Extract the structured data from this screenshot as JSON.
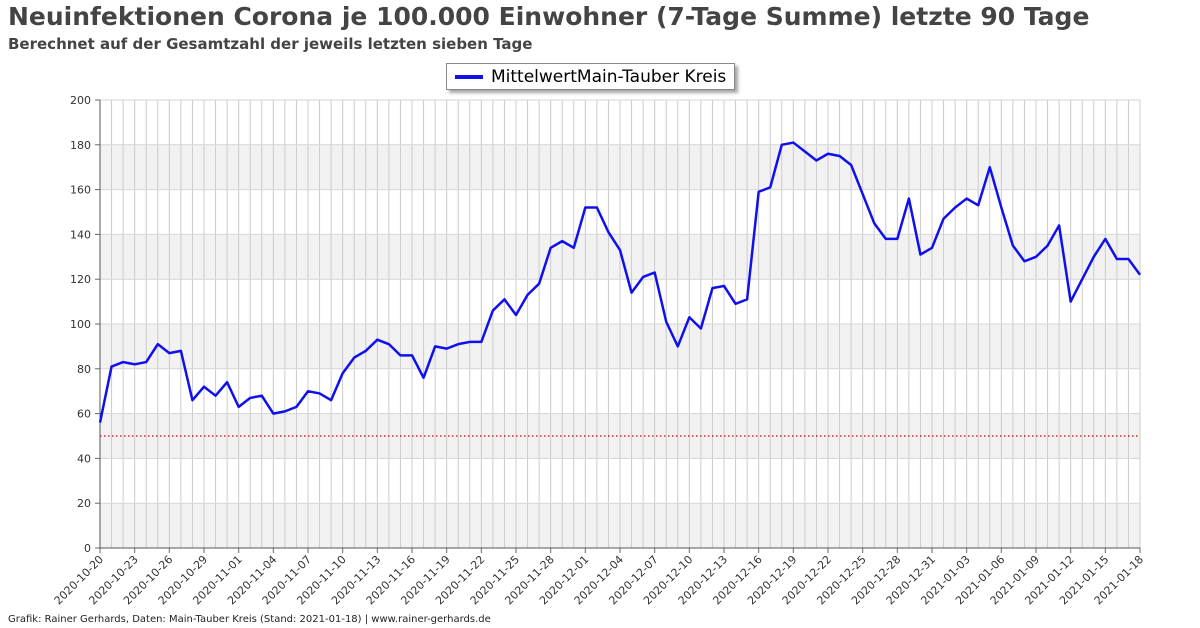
{
  "header": {
    "title": "Neuinfektionen Corona je 100.000 Einwohner (7-Tage Summe) letzte 90 Tage",
    "subtitle": "Berechnet auf der Gesamtzahl der jeweils letzten sieben Tage"
  },
  "footer": {
    "credit": "Grafik: Rainer Gerhards, Daten: Main-Tauber Kreis (Stand: 2021-01-18) | www.rainer-gerhards.de"
  },
  "chart_data": {
    "type": "line",
    "title": "Neuinfektionen Corona je 100.000 Einwohner (7-Tage Summe) letzte 90 Tage",
    "subtitle": "Berechnet auf der Gesamtzahl der jeweils letzten sieben Tage",
    "x_start": "2020-10-20",
    "x_end": "2021-01-18",
    "ylim": [
      0,
      200
    ],
    "y_ticks": [
      0,
      20,
      40,
      60,
      80,
      100,
      120,
      140,
      160,
      180,
      200
    ],
    "x_tick_labels": [
      "2020-10-20",
      "2020-10-23",
      "2020-10-26",
      "2020-10-29",
      "2020-11-01",
      "2020-11-04",
      "2020-11-07",
      "2020-11-10",
      "2020-11-13",
      "2020-11-16",
      "2020-11-19",
      "2020-11-22",
      "2020-11-25",
      "2020-11-28",
      "2020-12-01",
      "2020-12-04",
      "2020-12-07",
      "2020-12-10",
      "2020-12-13",
      "2020-12-16",
      "2020-12-19",
      "2020-12-22",
      "2020-12-25",
      "2020-12-28",
      "2020-12-31",
      "2021-01-03",
      "2021-01-06",
      "2021-01-09",
      "2021-01-12",
      "2021-01-15",
      "2021-01-18"
    ],
    "grid": true,
    "legend_position": "top-center",
    "reference_line": {
      "y": 50,
      "color": "#cc0000",
      "style": "dotted"
    },
    "series": [
      {
        "name": "MittelwertMain-Tauber Kreis",
        "color": "#1010ee",
        "values": [
          56,
          81,
          83,
          82,
          83,
          91,
          87,
          88,
          66,
          72,
          68,
          74,
          63,
          67,
          68,
          60,
          61,
          63,
          70,
          69,
          66,
          78,
          85,
          88,
          93,
          91,
          86,
          86,
          76,
          90,
          89,
          91,
          92,
          92,
          106,
          111,
          104,
          113,
          118,
          134,
          137,
          134,
          152,
          152,
          141,
          133,
          114,
          121,
          123,
          101,
          90,
          103,
          98,
          116,
          117,
          109,
          111,
          159,
          161,
          180,
          181,
          177,
          173,
          176,
          175,
          171,
          158,
          145,
          138,
          138,
          156,
          131,
          134,
          147,
          152,
          156,
          153,
          170,
          152,
          135,
          128,
          130,
          135,
          144,
          110,
          120,
          130,
          138,
          129,
          129,
          122
        ]
      }
    ]
  }
}
